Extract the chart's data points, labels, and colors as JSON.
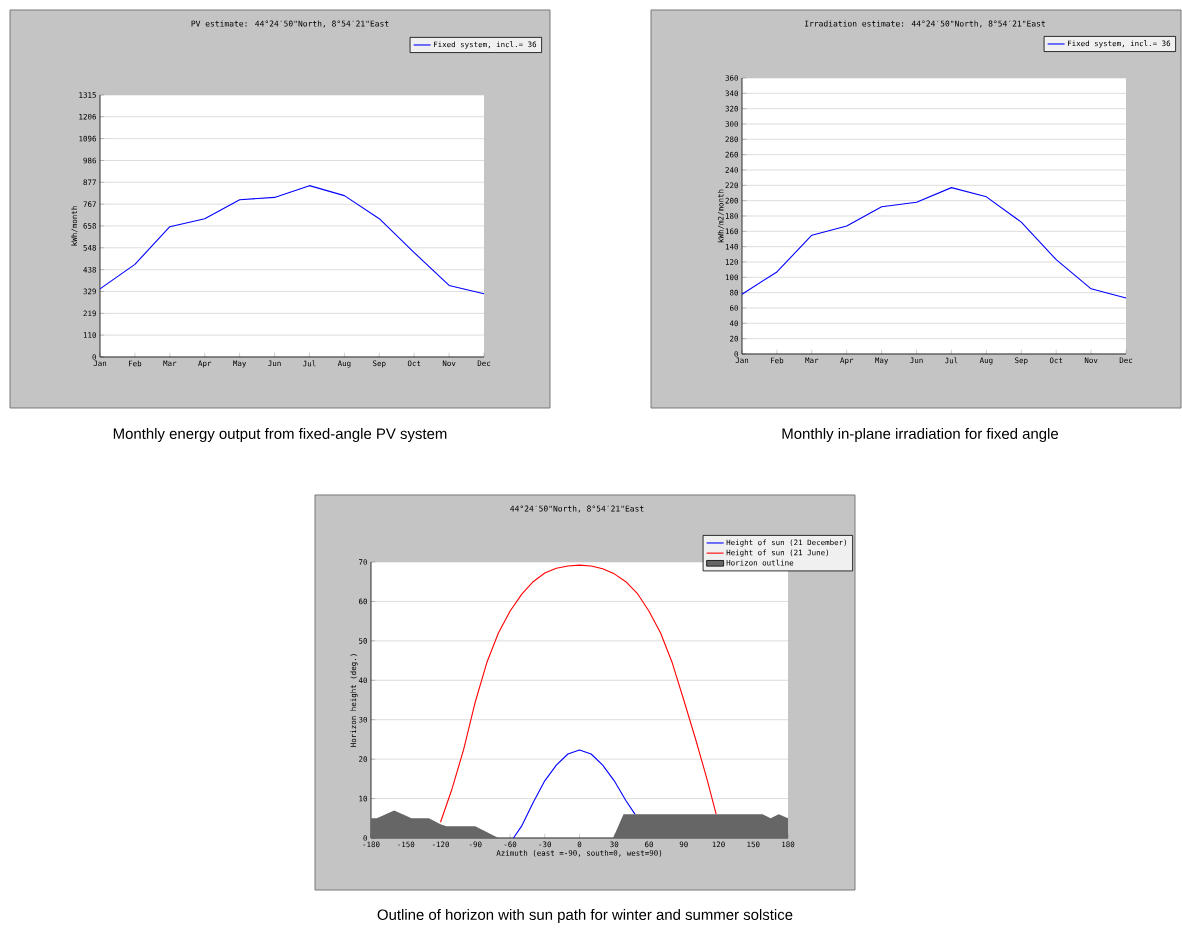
{
  "chart_data": [
    {
      "type": "line",
      "title": "PV estimate: 44°24′50\"North, 8°54′21\"East",
      "ylabel": "kWh/month",
      "categories": [
        "Jan",
        "Feb",
        "Mar",
        "Apr",
        "May",
        "Jun",
        "Jul",
        "Aug",
        "Sep",
        "Oct",
        "Nov",
        "Dec"
      ],
      "series": [
        {
          "name": "Fixed system, incl.= 36",
          "color": "#0000ff",
          "values": [
            342,
            465,
            654,
            694,
            789,
            801,
            860,
            810,
            694,
            524,
            359,
            317
          ]
        }
      ],
      "ylim": [
        0,
        1315
      ],
      "yticks": [
        0,
        110,
        219,
        329,
        438,
        548,
        658,
        767,
        877,
        986,
        1096,
        1206,
        1315
      ],
      "grid": "y",
      "legend": "top right",
      "annotations": [
        "Monthly energy output from fixed-angle PV system"
      ]
    },
    {
      "type": "line",
      "title": "Irradiation estimate: 44°24′50\"North, 8°54′21\"East",
      "ylabel": "kWh/m2/month",
      "categories": [
        "Jan",
        "Feb",
        "Mar",
        "Apr",
        "May",
        "Jun",
        "Jul",
        "Aug",
        "Sep",
        "Oct",
        "Nov",
        "Dec"
      ],
      "series": [
        {
          "name": "Fixed system, incl.= 36",
          "color": "#0000ff",
          "values": [
            78,
            107,
            155,
            167,
            192,
            198,
            217,
            205,
            172,
            123,
            85,
            73
          ]
        }
      ],
      "ylim": [
        0,
        360
      ],
      "yticks": [
        0,
        20,
        40,
        60,
        80,
        100,
        120,
        140,
        160,
        180,
        200,
        220,
        240,
        260,
        280,
        300,
        320,
        340,
        360
      ],
      "grid": "y",
      "legend": "top right",
      "annotations": [
        "Monthly in-plane irradiation for fixed angle"
      ]
    },
    {
      "type": "line",
      "title": "44°24′50\"North, 8°54′21\"East",
      "xlabel": "Azimuth (east =-90, south=0, west=90)",
      "ylabel": "Horizon height (deg.)",
      "series": [
        {
          "name": "Height of sun (21 December)",
          "color": "#0000ff",
          "x": [
            -57,
            -50,
            -40,
            -30,
            -20,
            -10,
            0,
            10,
            20,
            30,
            40,
            48
          ],
          "values": [
            0,
            3,
            9,
            14.5,
            18.5,
            21.3,
            22.3,
            21.3,
            18.5,
            14.5,
            9.5,
            6
          ]
        },
        {
          "name": "Height of sun (21 June)",
          "color": "#ff0000",
          "x": [
            -120,
            -110,
            -100,
            -90,
            -80,
            -70,
            -60,
            -50,
            -40,
            -30,
            -20,
            -10,
            0,
            10,
            20,
            30,
            40,
            50,
            60,
            70,
            80,
            90,
            100,
            110,
            118
          ],
          "values": [
            4,
            12.5,
            22.5,
            34.5,
            44.5,
            52,
            57.5,
            61.8,
            65,
            67.2,
            68.4,
            69,
            69.2,
            69,
            68.3,
            67,
            65,
            62,
            57.5,
            52,
            44.5,
            35,
            25.3,
            15,
            6
          ]
        },
        {
          "name": "Horizon outline",
          "type": "area",
          "color": "#666666",
          "x": [
            -180,
            -175,
            -160,
            -145,
            -130,
            -120,
            -115,
            -90,
            -70,
            29,
            38,
            158,
            165,
            172,
            180
          ],
          "values": [
            5,
            5,
            7,
            5,
            5,
            3.5,
            3,
            3,
            0,
            0,
            6,
            6,
            5,
            6,
            5
          ]
        }
      ],
      "xlim": [
        -180,
        180
      ],
      "xticks": [
        -180,
        -150,
        -120,
        -90,
        -60,
        -30,
        0,
        30,
        60,
        90,
        120,
        150,
        180
      ],
      "ylim": [
        0,
        70
      ],
      "yticks": [
        0,
        10,
        20,
        30,
        40,
        50,
        60,
        70
      ],
      "grid": "y",
      "legend": "top right",
      "annotations": [
        "Outline of horizon with sun path for winter and summer solstice"
      ]
    }
  ]
}
